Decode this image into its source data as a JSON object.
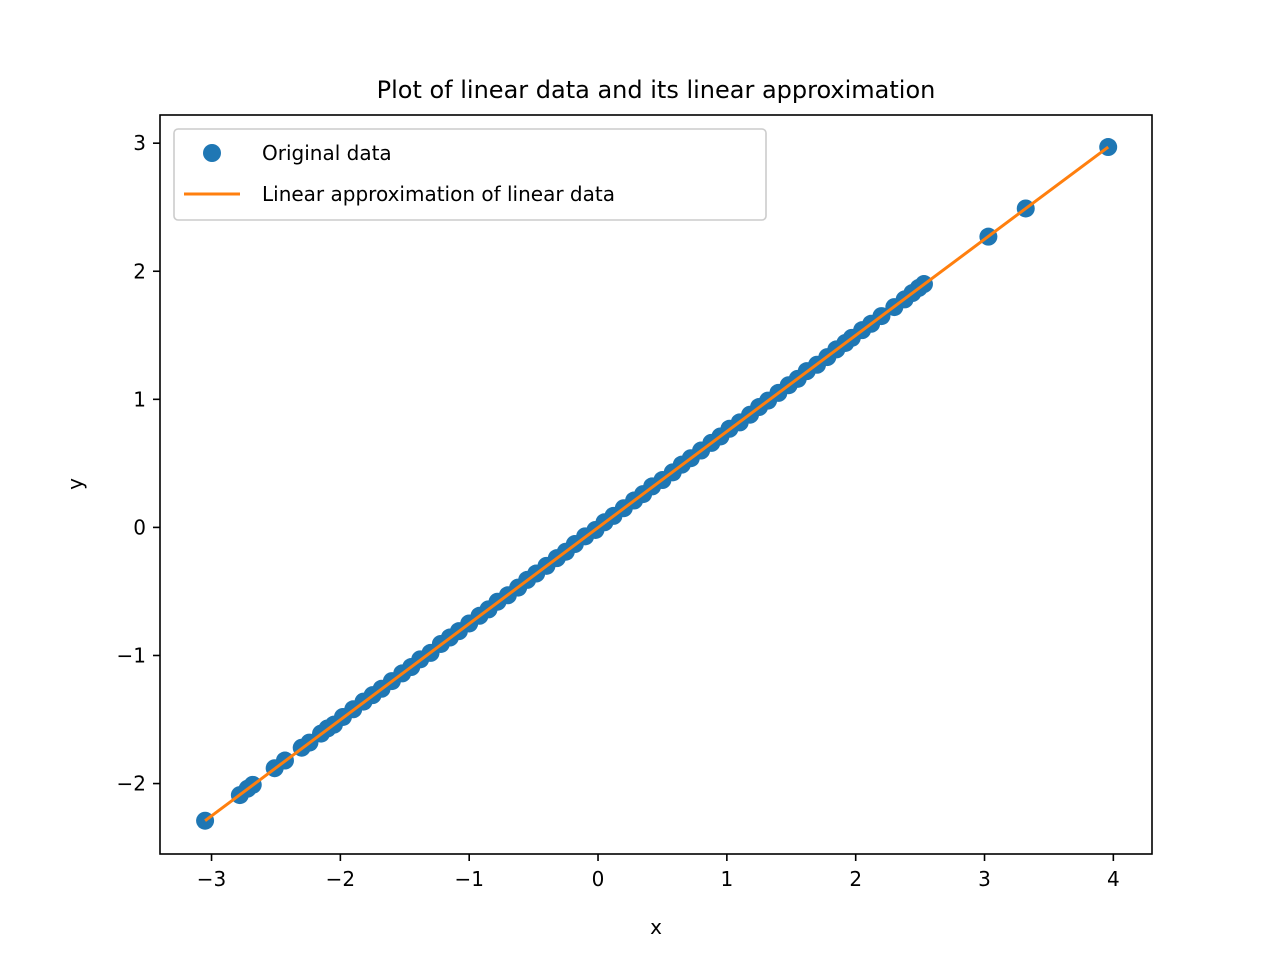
{
  "chart_data": {
    "type": "scatter",
    "title": "Plot of linear data and its linear approximation",
    "xlabel": "x",
    "ylabel": "y",
    "xlim": [
      -3.4,
      4.3
    ],
    "ylim": [
      -2.55,
      3.22
    ],
    "xticks": [
      -3,
      -2,
      -1,
      0,
      1,
      2,
      3,
      4
    ],
    "yticks": [
      -2,
      -1,
      0,
      1,
      2,
      3
    ],
    "xtick_labels": [
      "−3",
      "−2",
      "−1",
      "0",
      "1",
      "2",
      "3",
      "4"
    ],
    "ytick_labels": [
      "−2",
      "−1",
      "0",
      "1",
      "2",
      "3"
    ],
    "grid": false,
    "legend_position": "upper-left",
    "series": [
      {
        "name": "Original data",
        "kind": "scatter",
        "color": "#1f77b4",
        "x": [
          -3.05,
          -2.78,
          -2.72,
          -2.68,
          -2.51,
          -2.43,
          -2.3,
          -2.24,
          -2.15,
          -2.1,
          -2.05,
          -1.98,
          -1.9,
          -1.82,
          -1.75,
          -1.68,
          -1.6,
          -1.52,
          -1.45,
          -1.38,
          -1.3,
          -1.22,
          -1.15,
          -1.08,
          -1.0,
          -0.92,
          -0.85,
          -0.78,
          -0.7,
          -0.62,
          -0.55,
          -0.48,
          -0.4,
          -0.32,
          -0.25,
          -0.18,
          -0.1,
          -0.02,
          0.05,
          0.12,
          0.2,
          0.28,
          0.35,
          0.42,
          0.5,
          0.58,
          0.65,
          0.72,
          0.8,
          0.88,
          0.95,
          1.02,
          1.1,
          1.18,
          1.25,
          1.32,
          1.4,
          1.48,
          1.55,
          1.62,
          1.7,
          1.78,
          1.85,
          1.92,
          1.97,
          2.05,
          2.12,
          2.2,
          2.3,
          2.38,
          2.44,
          2.49,
          2.53,
          3.03,
          3.32,
          3.96
        ],
        "y": [
          -2.29,
          -2.09,
          -2.04,
          -2.01,
          -1.88,
          -1.82,
          -1.72,
          -1.68,
          -1.61,
          -1.57,
          -1.54,
          -1.48,
          -1.42,
          -1.36,
          -1.31,
          -1.26,
          -1.2,
          -1.14,
          -1.09,
          -1.03,
          -0.98,
          -0.91,
          -0.86,
          -0.81,
          -0.75,
          -0.69,
          -0.64,
          -0.58,
          -0.53,
          -0.47,
          -0.41,
          -0.36,
          -0.3,
          -0.24,
          -0.19,
          -0.13,
          -0.07,
          -0.02,
          0.04,
          0.09,
          0.15,
          0.21,
          0.26,
          0.32,
          0.37,
          0.43,
          0.49,
          0.54,
          0.6,
          0.66,
          0.71,
          0.77,
          0.82,
          0.88,
          0.94,
          0.99,
          1.05,
          1.11,
          1.16,
          1.22,
          1.27,
          1.33,
          1.39,
          1.44,
          1.48,
          1.54,
          1.59,
          1.65,
          1.72,
          1.78,
          1.83,
          1.87,
          1.9,
          2.27,
          2.49,
          2.97
        ]
      },
      {
        "name": "Linear approximation of linear data",
        "kind": "line",
        "color": "#ff7f0e",
        "x": [
          -3.05,
          3.96
        ],
        "y": [
          -2.29,
          2.97
        ]
      }
    ]
  }
}
